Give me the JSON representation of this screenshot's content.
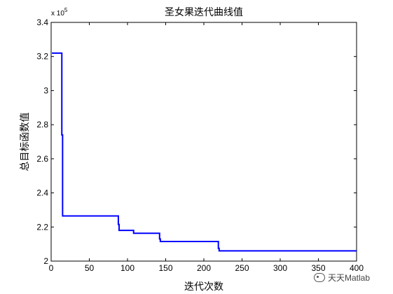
{
  "chart_data": {
    "type": "line",
    "title": "圣女果迭代曲线值",
    "xlabel": "迭代次数",
    "ylabel": "总目标函数值",
    "y_exponent_label": "x 10",
    "y_exponent_power": "5",
    "xlim": [
      0,
      400
    ],
    "ylim": [
      2.0,
      3.4
    ],
    "x_ticks": [
      0,
      50,
      100,
      150,
      200,
      250,
      300,
      350,
      400
    ],
    "y_ticks": [
      2,
      2.2,
      2.4,
      2.6,
      2.8,
      3,
      3.2,
      3.4
    ],
    "x_tick_labels": [
      "0",
      "50",
      "100",
      "150",
      "200",
      "250",
      "300",
      "350",
      "400"
    ],
    "y_tick_labels": [
      "2",
      "2.2",
      "2.4",
      "2.6",
      "2.8",
      "3",
      "3.2",
      "3.4"
    ],
    "grid": false,
    "line_color": "#0000ff",
    "series": [
      {
        "x": [
          1,
          14,
          14,
          15,
          15,
          88,
          88,
          89,
          89,
          108,
          108,
          142,
          142,
          143,
          143,
          219,
          219,
          220,
          220,
          400
        ],
        "y": [
          3.22,
          3.22,
          2.74,
          2.74,
          2.265,
          2.265,
          2.215,
          2.215,
          2.18,
          2.18,
          2.163,
          2.163,
          2.13,
          2.13,
          2.115,
          2.115,
          2.075,
          2.075,
          2.06,
          2.06
        ]
      }
    ]
  },
  "watermark": {
    "text": "天天Matlab",
    "icon": "wechat-icon"
  }
}
